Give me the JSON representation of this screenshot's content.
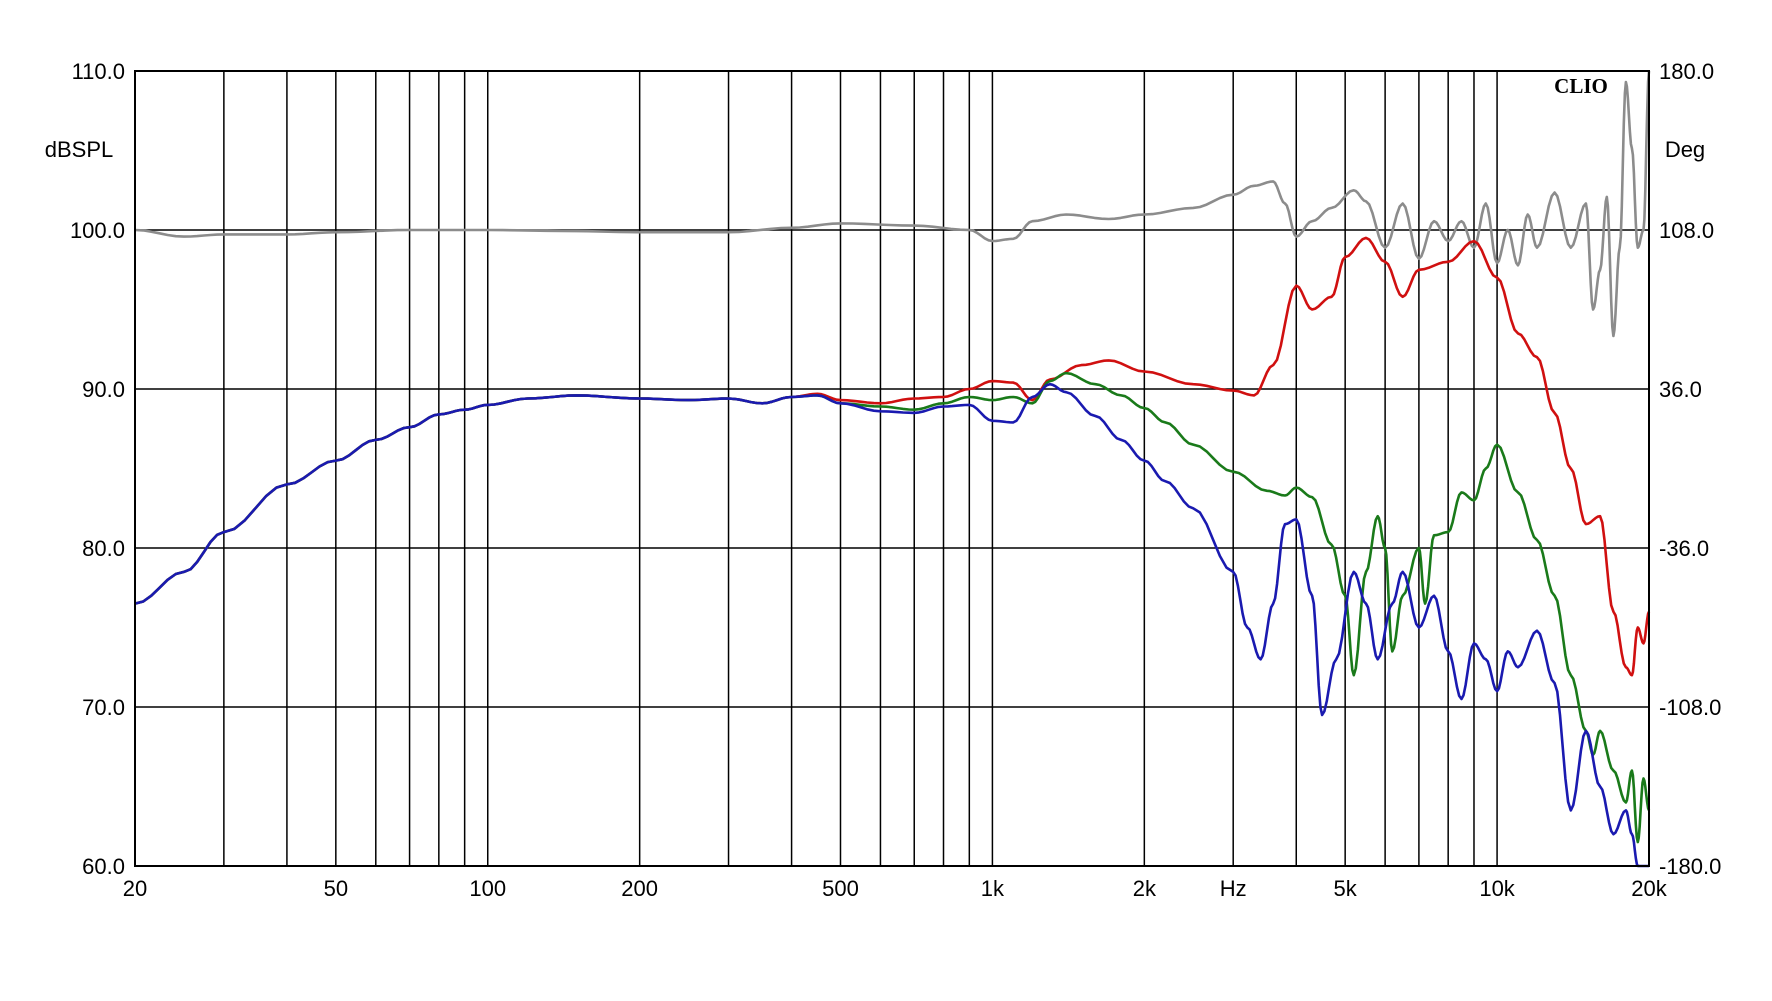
{
  "chart_data": {
    "type": "line",
    "title": "",
    "brand": "CLIO",
    "xlabel": "Hz",
    "ylabel": "dBSPL",
    "y2label": "Deg",
    "x_scale": "log",
    "xlim": [
      20,
      20000
    ],
    "ylim": [
      60,
      110
    ],
    "y2lim": [
      -180,
      180
    ],
    "grid": true,
    "x_ticks": [
      {
        "value": 20,
        "label": "20"
      },
      {
        "value": 50,
        "label": "50"
      },
      {
        "value": 100,
        "label": "100"
      },
      {
        "value": 200,
        "label": "200"
      },
      {
        "value": 500,
        "label": "500"
      },
      {
        "value": 1000,
        "label": "1k"
      },
      {
        "value": 2000,
        "label": "2k"
      },
      {
        "value": 5000,
        "label": "5k"
      },
      {
        "value": 10000,
        "label": "10k"
      },
      {
        "value": 20000,
        "label": "20k"
      }
    ],
    "y_ticks": [
      {
        "value": 60,
        "label": "60.0"
      },
      {
        "value": 70,
        "label": "70.0"
      },
      {
        "value": 80,
        "label": "80.0"
      },
      {
        "value": 90,
        "label": "90.0"
      },
      {
        "value": 100,
        "label": "100.0"
      },
      {
        "value": 110,
        "label": "110.0"
      }
    ],
    "y2_ticks": [
      {
        "value": -180,
        "label": "-180.0"
      },
      {
        "value": -108,
        "label": "-108.0"
      },
      {
        "value": -36,
        "label": "-36.0"
      },
      {
        "value": 36,
        "label": "36.0"
      },
      {
        "value": 108,
        "label": "108.0"
      },
      {
        "value": 180,
        "label": "180.0"
      }
    ],
    "series": [
      {
        "color": "#d01010",
        "axis": "left",
        "points": [
          [
            20,
            76.5
          ],
          [
            25,
            78.5
          ],
          [
            30,
            81
          ],
          [
            40,
            84
          ],
          [
            50,
            85.5
          ],
          [
            60,
            86.8
          ],
          [
            70,
            87.6
          ],
          [
            80,
            88.4
          ],
          [
            90,
            88.7
          ],
          [
            100,
            89
          ],
          [
            120,
            89.4
          ],
          [
            150,
            89.6
          ],
          [
            200,
            89.4
          ],
          [
            250,
            89.3
          ],
          [
            300,
            89.4
          ],
          [
            350,
            89.1
          ],
          [
            400,
            89.5
          ],
          [
            450,
            89.7
          ],
          [
            500,
            89.3
          ],
          [
            600,
            89.1
          ],
          [
            700,
            89.4
          ],
          [
            800,
            89.5
          ],
          [
            900,
            90.0
          ],
          [
            1000,
            90.5
          ],
          [
            1100,
            90.4
          ],
          [
            1200,
            89.3
          ],
          [
            1300,
            90.6
          ],
          [
            1500,
            91.5
          ],
          [
            1700,
            91.8
          ],
          [
            2000,
            91.1
          ],
          [
            2500,
            90.3
          ],
          [
            3000,
            89.9
          ],
          [
            3300,
            89.6
          ],
          [
            3600,
            91.5
          ],
          [
            4000,
            96.5
          ],
          [
            4300,
            95.0
          ],
          [
            4700,
            95.8
          ],
          [
            5000,
            98.3
          ],
          [
            5500,
            99.5
          ],
          [
            6000,
            98.0
          ],
          [
            6500,
            95.8
          ],
          [
            7000,
            97.5
          ],
          [
            8000,
            98.0
          ],
          [
            9000,
            99.3
          ],
          [
            10000,
            97.0
          ],
          [
            11000,
            93.5
          ],
          [
            12000,
            92.0
          ],
          [
            13000,
            88.5
          ],
          [
            14000,
            85.0
          ],
          [
            15000,
            81.5
          ],
          [
            16000,
            82.0
          ],
          [
            17000,
            76.0
          ],
          [
            18000,
            72.5
          ],
          [
            18500,
            72.0
          ],
          [
            19000,
            75.0
          ],
          [
            19500,
            74.0
          ],
          [
            20000,
            76.0
          ]
        ]
      },
      {
        "color": "#1a7a1a",
        "axis": "left",
        "points": [
          [
            20,
            76.5
          ],
          [
            25,
            78.5
          ],
          [
            30,
            81
          ],
          [
            40,
            84
          ],
          [
            50,
            85.5
          ],
          [
            60,
            86.8
          ],
          [
            70,
            87.6
          ],
          [
            80,
            88.4
          ],
          [
            90,
            88.7
          ],
          [
            100,
            89
          ],
          [
            120,
            89.4
          ],
          [
            150,
            89.6
          ],
          [
            200,
            89.4
          ],
          [
            250,
            89.3
          ],
          [
            300,
            89.4
          ],
          [
            350,
            89.1
          ],
          [
            400,
            89.5
          ],
          [
            450,
            89.6
          ],
          [
            500,
            89.1
          ],
          [
            600,
            88.9
          ],
          [
            700,
            88.7
          ],
          [
            800,
            89.1
          ],
          [
            900,
            89.5
          ],
          [
            1000,
            89.3
          ],
          [
            1100,
            89.5
          ],
          [
            1200,
            89.1
          ],
          [
            1300,
            90.5
          ],
          [
            1400,
            91.0
          ],
          [
            1600,
            90.3
          ],
          [
            1800,
            89.6
          ],
          [
            2000,
            88.8
          ],
          [
            2200,
            87.9
          ],
          [
            2500,
            86.5
          ],
          [
            3000,
            84.8
          ],
          [
            3500,
            83.6
          ],
          [
            3800,
            83.3
          ],
          [
            4000,
            83.8
          ],
          [
            4300,
            83.2
          ],
          [
            4700,
            80.2
          ],
          [
            5000,
            77.0
          ],
          [
            5200,
            72.0
          ],
          [
            5500,
            78.5
          ],
          [
            5800,
            82.0
          ],
          [
            6000,
            80.0
          ],
          [
            6200,
            73.5
          ],
          [
            6500,
            77.0
          ],
          [
            7000,
            80.0
          ],
          [
            7200,
            76.5
          ],
          [
            7500,
            80.8
          ],
          [
            8000,
            81.0
          ],
          [
            8500,
            83.5
          ],
          [
            9000,
            83.0
          ],
          [
            9500,
            85.0
          ],
          [
            10000,
            86.5
          ],
          [
            11000,
            83.5
          ],
          [
            12000,
            80.5
          ],
          [
            13000,
            77.0
          ],
          [
            14000,
            72.0
          ],
          [
            15000,
            68.5
          ],
          [
            15500,
            67.0
          ],
          [
            16000,
            68.5
          ],
          [
            17000,
            66.0
          ],
          [
            18000,
            64.0
          ],
          [
            18500,
            66.0
          ],
          [
            19000,
            61.5
          ],
          [
            19500,
            65.5
          ],
          [
            20000,
            63.5
          ]
        ]
      },
      {
        "color": "#1a1ab0",
        "axis": "left",
        "points": [
          [
            20,
            76.5
          ],
          [
            25,
            78.5
          ],
          [
            30,
            81
          ],
          [
            40,
            84
          ],
          [
            50,
            85.5
          ],
          [
            60,
            86.8
          ],
          [
            70,
            87.6
          ],
          [
            80,
            88.4
          ],
          [
            90,
            88.7
          ],
          [
            100,
            89
          ],
          [
            120,
            89.4
          ],
          [
            150,
            89.6
          ],
          [
            200,
            89.4
          ],
          [
            250,
            89.3
          ],
          [
            300,
            89.4
          ],
          [
            350,
            89.1
          ],
          [
            400,
            89.5
          ],
          [
            450,
            89.6
          ],
          [
            500,
            89.1
          ],
          [
            600,
            88.6
          ],
          [
            700,
            88.5
          ],
          [
            800,
            88.9
          ],
          [
            900,
            89.0
          ],
          [
            1000,
            88.0
          ],
          [
            1100,
            87.9
          ],
          [
            1200,
            89.5
          ],
          [
            1300,
            90.3
          ],
          [
            1400,
            89.8
          ],
          [
            1600,
            88.3
          ],
          [
            1800,
            86.8
          ],
          [
            2000,
            85.5
          ],
          [
            2200,
            84.2
          ],
          [
            2500,
            82.5
          ],
          [
            3000,
            78.5
          ],
          [
            3200,
            75.0
          ],
          [
            3400,
            73.0
          ],
          [
            3600,
            76.5
          ],
          [
            3800,
            81.5
          ],
          [
            4000,
            81.8
          ],
          [
            4300,
            77.0
          ],
          [
            4500,
            69.5
          ],
          [
            4800,
            73.0
          ],
          [
            5200,
            78.5
          ],
          [
            5500,
            76.5
          ],
          [
            5800,
            73.0
          ],
          [
            6200,
            76.5
          ],
          [
            6500,
            78.5
          ],
          [
            7000,
            75.0
          ],
          [
            7500,
            77.0
          ],
          [
            8000,
            73.5
          ],
          [
            8500,
            70.5
          ],
          [
            9000,
            74.0
          ],
          [
            9500,
            73.0
          ],
          [
            10000,
            71.0
          ],
          [
            10500,
            73.5
          ],
          [
            11000,
            72.5
          ],
          [
            12000,
            74.8
          ],
          [
            13000,
            71.5
          ],
          [
            14000,
            63.5
          ],
          [
            15000,
            68.5
          ],
          [
            16000,
            65.0
          ],
          [
            17000,
            62.0
          ],
          [
            18000,
            63.5
          ],
          [
            18500,
            62.0
          ],
          [
            19000,
            60.0
          ],
          [
            20000,
            59.5
          ]
        ]
      },
      {
        "color": "#8c8c8c",
        "axis": "right",
        "points": [
          [
            20,
            108
          ],
          [
            25,
            105
          ],
          [
            30,
            106
          ],
          [
            40,
            106
          ],
          [
            50,
            107
          ],
          [
            70,
            108
          ],
          [
            100,
            108
          ],
          [
            150,
            107.5
          ],
          [
            200,
            107
          ],
          [
            300,
            107
          ],
          [
            400,
            109
          ],
          [
            500,
            111
          ],
          [
            700,
            110
          ],
          [
            900,
            108
          ],
          [
            1000,
            103
          ],
          [
            1100,
            104
          ],
          [
            1200,
            112
          ],
          [
            1400,
            115
          ],
          [
            1700,
            113
          ],
          [
            2000,
            115
          ],
          [
            2500,
            118
          ],
          [
            3000,
            124
          ],
          [
            3300,
            128
          ],
          [
            3600,
            130
          ],
          [
            3800,
            120
          ],
          [
            4000,
            105
          ],
          [
            4300,
            112
          ],
          [
            4700,
            118
          ],
          [
            5200,
            126
          ],
          [
            5500,
            121
          ],
          [
            6000,
            100
          ],
          [
            6500,
            120
          ],
          [
            7000,
            95
          ],
          [
            7500,
            112
          ],
          [
            8000,
            103
          ],
          [
            8500,
            112
          ],
          [
            9000,
            100
          ],
          [
            9500,
            120
          ],
          [
            10000,
            93
          ],
          [
            10500,
            108
          ],
          [
            11000,
            92
          ],
          [
            11500,
            115
          ],
          [
            12000,
            100
          ],
          [
            13000,
            125
          ],
          [
            14000,
            100
          ],
          [
            15000,
            120
          ],
          [
            15500,
            72
          ],
          [
            16000,
            90
          ],
          [
            16500,
            123
          ],
          [
            17000,
            60
          ],
          [
            17500,
            100
          ],
          [
            18000,
            175
          ],
          [
            18500,
            145
          ],
          [
            19000,
            100
          ],
          [
            19500,
            108
          ],
          [
            20000,
            180
          ]
        ]
      }
    ]
  }
}
